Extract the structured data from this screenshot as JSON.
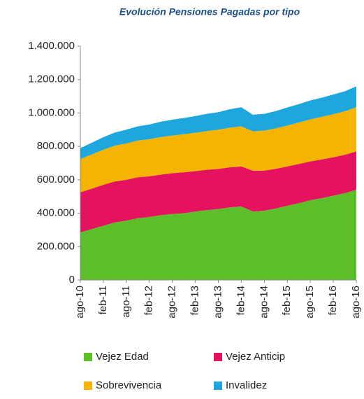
{
  "chart_data": {
    "type": "stacked_area",
    "title": "Evolución Pensiones Pagadas por tipo",
    "categories": [
      "ago-10",
      null,
      "feb-11",
      null,
      "ago-11",
      null,
      "feb-12",
      null,
      "ago-12",
      null,
      "feb-13",
      null,
      "ago-13",
      null,
      "feb-14",
      null,
      "ago-14",
      null,
      "feb-15",
      null,
      "ago-15",
      null,
      "feb-16",
      null,
      "ago-16"
    ],
    "series": [
      {
        "name": "Vejez Edad",
        "color": "#5cbf2a",
        "values": [
          285000,
          305000,
          325000,
          345000,
          355000,
          370000,
          378000,
          388000,
          395000,
          400000,
          410000,
          418000,
          425000,
          435000,
          440000,
          410000,
          415000,
          428000,
          445000,
          460000,
          478000,
          490000,
          505000,
          520000,
          540000
        ]
      },
      {
        "name": "Vejez Anticip",
        "color": "#e5135f",
        "values": [
          240000,
          242000,
          245000,
          245000,
          245000,
          245000,
          243000,
          243000,
          245000,
          245000,
          242000,
          242000,
          240000,
          240000,
          240000,
          245000,
          240000,
          238000,
          235000,
          235000,
          232000,
          232000,
          230000,
          230000,
          230000
        ]
      },
      {
        "name": "Sobrevivencia",
        "color": "#f5b400",
        "values": [
          200000,
          205000,
          210000,
          215000,
          218000,
          220000,
          222000,
          225000,
          225000,
          228000,
          230000,
          232000,
          235000,
          237000,
          240000,
          235000,
          240000,
          242000,
          245000,
          248000,
          252000,
          255000,
          258000,
          260000,
          265000
        ]
      },
      {
        "name": "Invalidez",
        "color": "#1ea6de",
        "values": [
          65000,
          70000,
          75000,
          78000,
          82000,
          85000,
          88000,
          92000,
          95000,
          97000,
          100000,
          103000,
          105000,
          110000,
          115000,
          100000,
          100000,
          104000,
          108000,
          110000,
          113000,
          115000,
          118000,
          120000,
          125000
        ]
      }
    ],
    "ylim": [
      0,
      1400000
    ],
    "yticks": [
      0,
      {
        "value": 200000,
        "label": "200.000"
      },
      {
        "value": 400000,
        "label": "400.000"
      },
      {
        "value": 600000,
        "label": "600.000"
      },
      {
        "value": 800000,
        "label": "800.000"
      },
      {
        "value": 1000000,
        "label": "1.000.000"
      },
      {
        "value": 1200000,
        "label": "1.200.000"
      },
      {
        "value": 1400000,
        "label": "1.400.000"
      }
    ],
    "grid": false
  }
}
